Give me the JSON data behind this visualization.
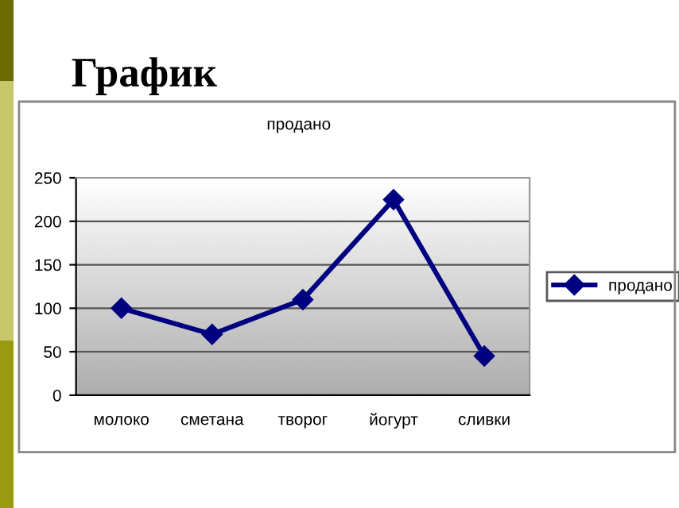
{
  "chart_data": {
    "type": "line",
    "title": "График",
    "subtitle": "продано",
    "categories": [
      "молоко",
      "сметана",
      "творог",
      "йогурт",
      "сливки"
    ],
    "series": [
      {
        "name": "продано",
        "color": "#000080",
        "values": [
          100,
          70,
          110,
          225,
          45
        ]
      }
    ],
    "ylim": [
      0,
      250
    ],
    "yticks": [
      0,
      50,
      100,
      150,
      200,
      250
    ],
    "grid": "y",
    "legend": "right",
    "marker": "diamond",
    "line_style": "solid"
  }
}
